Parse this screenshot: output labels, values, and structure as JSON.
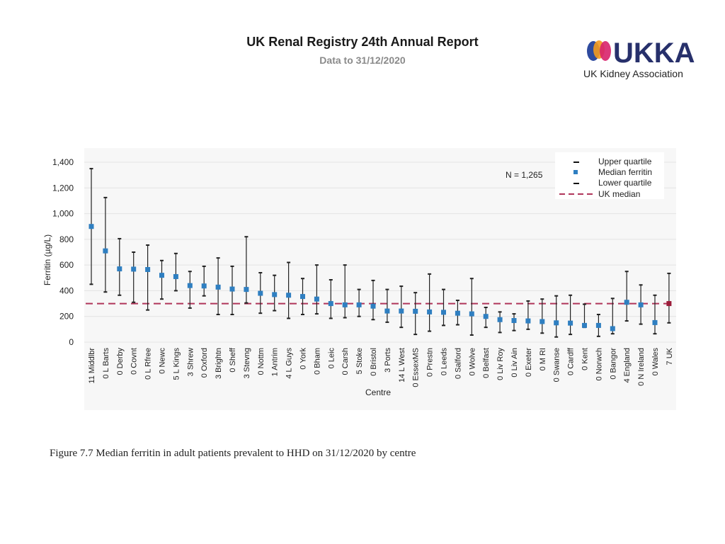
{
  "header": {
    "title": "UK Renal Registry 24th Annual Report",
    "subtitle": "Data to 31/12/2020"
  },
  "logo": {
    "wordmark": "UKKA",
    "name": "UK Kidney Association",
    "colors": {
      "blue": "#2e4a9e",
      "orange": "#f39a1e",
      "pink": "#d8226b",
      "navy": "#27306b"
    }
  },
  "caption": "Figure 7.7 Median ferritin in adult patients prevalent to HHD on 31/12/2020 by centre",
  "colors": {
    "marker": "#2f7fc1",
    "uk_marker": "#9b1c3a",
    "uk_median": "#b0355a",
    "whisker": "#222222",
    "grid": "#e4e4e4",
    "plot_bg": "#f7f7f7"
  },
  "chart_data": {
    "type": "scatter",
    "ylabel": "Ferritin (µg/L)",
    "xlabel": "Centre",
    "ylim": [
      0,
      1400
    ],
    "yticks": [
      0,
      200,
      400,
      600,
      800,
      1000,
      1200,
      1400
    ],
    "ytick_labels": [
      "0",
      "200",
      "400",
      "600",
      "800",
      "1,000",
      "1,200",
      "1,400"
    ],
    "n_label": "N = 1,265",
    "uk_median": 300,
    "legend": {
      "position": "top-right",
      "items": [
        {
          "symbol": "dash",
          "label": "Upper quartile"
        },
        {
          "symbol": "square",
          "label": "Median ferritin"
        },
        {
          "symbol": "dash",
          "label": "Lower quartile"
        },
        {
          "symbol": "dashed-line",
          "label": "UK median"
        }
      ]
    },
    "categories": [
      "11 Middlbr",
      "0 L Barts",
      "0 Derby",
      "0 Covnt",
      "0 L Rfree",
      "0 Newc",
      "5 L Kings",
      "3 Shrew",
      "0 Oxford",
      "3 Brightn",
      "0 Sheff",
      "3 Stevng",
      "0 Nottm",
      "1 Antrim",
      "4 L Guys",
      "0 York",
      "0 Bham",
      "0 Leic",
      "0 Carsh",
      "5 Stoke",
      "0 Bristol",
      "3 Ports",
      "14 L West",
      "0 EssexMS",
      "0 Prestn",
      "0 Leeds",
      "0 Salford",
      "0 Wolve",
      "0 Belfast",
      "0 Liv Roy",
      "0 Liv Ain",
      "0 Exeter",
      "0 M RI",
      "0 Swanse",
      "0 Cardff",
      "0 Kent",
      "0 Norwch",
      "0 Bangor",
      "4 England",
      "0 N Ireland",
      "0 Wales",
      "7 UK"
    ],
    "median": [
      900,
      710,
      570,
      568,
      565,
      520,
      510,
      440,
      437,
      428,
      413,
      410,
      380,
      370,
      365,
      355,
      335,
      300,
      290,
      290,
      280,
      242,
      242,
      240,
      235,
      232,
      225,
      220,
      200,
      175,
      168,
      165,
      160,
      150,
      148,
      130,
      130,
      105,
      310,
      290,
      152,
      300
    ],
    "upper": [
      1350,
      1125,
      805,
      700,
      755,
      635,
      690,
      550,
      590,
      655,
      590,
      820,
      540,
      520,
      620,
      495,
      600,
      485,
      600,
      410,
      480,
      410,
      435,
      385,
      530,
      410,
      325,
      495,
      270,
      235,
      220,
      320,
      335,
      360,
      365,
      295,
      215,
      340,
      550,
      445,
      365,
      535
    ],
    "lower": [
      450,
      390,
      365,
      310,
      250,
      335,
      400,
      265,
      360,
      215,
      215,
      305,
      225,
      245,
      185,
      215,
      220,
      185,
      190,
      200,
      175,
      155,
      115,
      60,
      85,
      130,
      135,
      55,
      115,
      75,
      90,
      100,
      70,
      40,
      60,
      115,
      45,
      65,
      165,
      140,
      65,
      150
    ]
  }
}
